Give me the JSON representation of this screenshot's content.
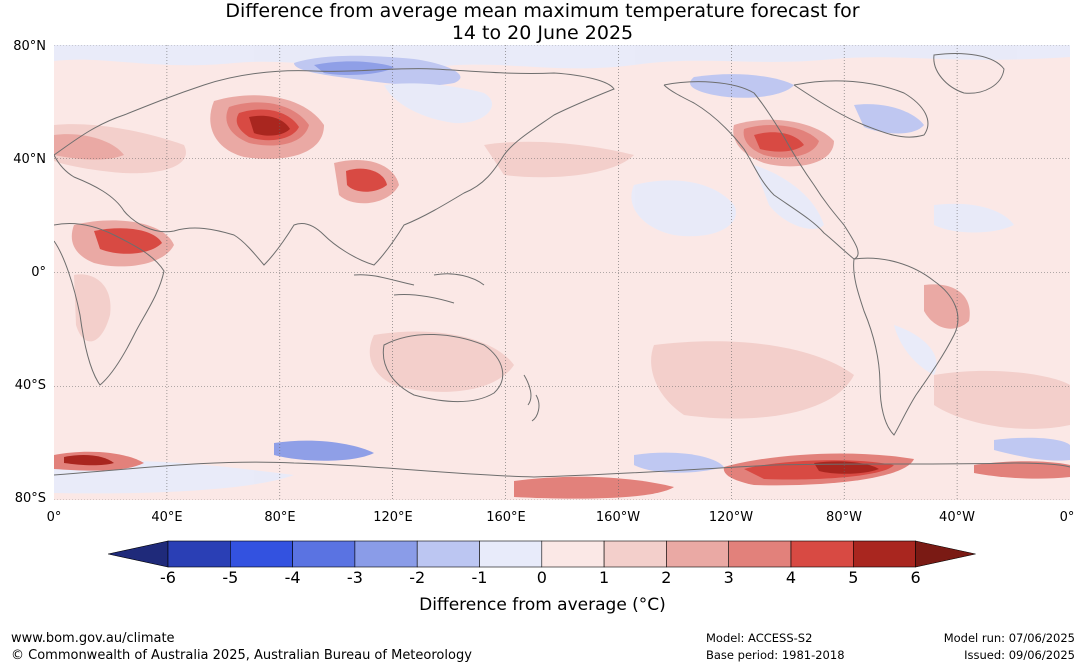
{
  "title": {
    "line1": "Difference from average mean maximum temperature forecast for",
    "line2": "14 to 20 June 2025"
  },
  "map": {
    "lat_labels": [
      "80°N",
      "40°N",
      "0°",
      "40°S",
      "80°S"
    ],
    "lon_labels": [
      "0°",
      "40°E",
      "80°E",
      "120°E",
      "160°E",
      "160°W",
      "120°W",
      "80°W",
      "40°W",
      "0°"
    ]
  },
  "colorbar": {
    "ticks": [
      "-6",
      "-5",
      "-4",
      "-3",
      "-2",
      "-1",
      "0",
      "1",
      "2",
      "3",
      "4",
      "5",
      "6"
    ],
    "colors": [
      "#1f2a7a",
      "#2a3fb5",
      "#3352e0",
      "#5a73e2",
      "#8a9ce8",
      "#bcc6f2",
      "#e8ebfa",
      "#fbe8e6",
      "#f3cfcb",
      "#eaa9a4",
      "#e2817b",
      "#d84a43",
      "#a9261f",
      "#7a1a14"
    ],
    "label": "Difference from average (°C)"
  },
  "footer": {
    "website": "www.bom.gov.au/climate",
    "copyright": "© Commonwealth of Australia 2025, Australian Bureau of Meteorology",
    "model": "Model: ACCESS-S2",
    "base_period": "Base period: 1981-2018",
    "model_run": "Model run: 07/06/2025",
    "issued": "Issued: 09/06/2025"
  }
}
